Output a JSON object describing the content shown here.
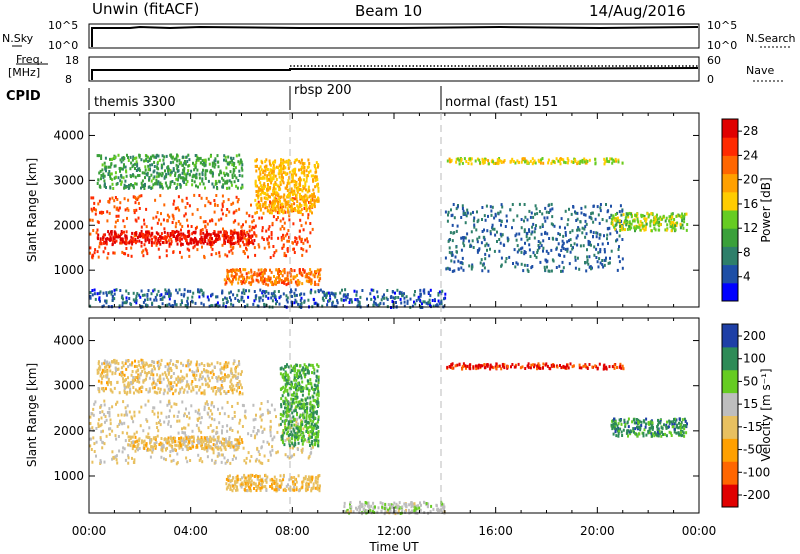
{
  "header": {
    "station": "Unwin (fitACF)",
    "beam": "Beam 10",
    "date": "14/Aug/2016"
  },
  "nsky_strip": {
    "left_label": "N.Sky",
    "right_label": "N.Search",
    "left_ticks": [
      "10^5",
      "10^0"
    ],
    "right_ticks": [
      "10^5",
      "10^0"
    ]
  },
  "freq_strip": {
    "left_label_1": "Freq.",
    "left_label_2": "[MHz]",
    "right_label": "Nave",
    "left_ticks": [
      "18",
      "8"
    ],
    "right_ticks": [
      "60",
      "0"
    ],
    "cpid_label": "CPID"
  },
  "cpid_segments": [
    {
      "label": "themis 3300",
      "start": 0
    },
    {
      "label": "rbsp 200",
      "start": 8
    },
    {
      "label": "normal (fast) 151",
      "start": 14
    }
  ],
  "colors": {
    "frame": "#000000",
    "divider": "#bbbbbb",
    "power": [
      "#0000ff",
      "#1e4fa6",
      "#2e7f6a",
      "#3aa03a",
      "#66cc22",
      "#ffcc00",
      "#ffa000",
      "#ff6600",
      "#ff2a00",
      "#e00000"
    ],
    "velocity": [
      "#e00000",
      "#ff6600",
      "#ffa000",
      "#e8c060",
      "#bebebe",
      "#66cc22",
      "#2e8b57",
      "#1e3fa6"
    ]
  },
  "chart_data": [
    {
      "type": "heatmap",
      "name": "power",
      "ylabel": "Slant Range [km]",
      "xlabel": "Time UT",
      "xlim": [
        0,
        24
      ],
      "ylim": [
        180,
        4500
      ],
      "yticks": [
        "1000",
        "2000",
        "3000",
        "4000"
      ],
      "xticks": [
        "00:00",
        "04:00",
        "08:00",
        "12:00",
        "16:00",
        "20:00",
        "00:00"
      ],
      "colorbar": {
        "label": "Power [dB]",
        "ticks": [
          "4",
          "8",
          "12",
          "16",
          "20",
          "24",
          "28"
        ],
        "range": [
          0,
          30
        ]
      },
      "features": [
        {
          "t": [
            0.0,
            8.8
          ],
          "r": [
            1300,
            2700
          ],
          "v": 24
        },
        {
          "t": [
            0.3,
            6.5
          ],
          "r": [
            1600,
            1900
          ],
          "v": 28
        },
        {
          "t": [
            5.3,
            9.1
          ],
          "r": [
            700,
            1050
          ],
          "v": 22
        },
        {
          "t": [
            0.3,
            6.0
          ],
          "r": [
            2850,
            3600
          ],
          "v": 10
        },
        {
          "t": [
            6.5,
            9.0
          ],
          "r": [
            2300,
            3500
          ],
          "v": 18
        },
        {
          "t": [
            14.0,
            21.0
          ],
          "r": [
            3400,
            3520
          ],
          "v": 16
        },
        {
          "t": [
            14.0,
            21.0
          ],
          "r": [
            1000,
            2500
          ],
          "v": 6
        },
        {
          "t": [
            0.0,
            14.0
          ],
          "r": [
            200,
            600
          ],
          "v": 5
        },
        {
          "t": [
            20.5,
            23.5
          ],
          "r": [
            1900,
            2300
          ],
          "v": 14
        }
      ]
    },
    {
      "type": "heatmap",
      "name": "velocity",
      "ylabel": "Slant Range [km]",
      "xlabel": "Time UT",
      "xlim": [
        0,
        24
      ],
      "ylim": [
        180,
        4500
      ],
      "yticks": [
        "1000",
        "2000",
        "3000",
        "4000"
      ],
      "xticks": [
        "00:00",
        "04:00",
        "08:00",
        "12:00",
        "16:00",
        "20:00",
        "00:00"
      ],
      "colorbar": {
        "label": "Velocity [m s⁻¹]",
        "ticks": [
          "200",
          "100",
          "50",
          "15",
          "-15",
          "-50",
          "-100",
          "-200"
        ],
        "range": [
          -250,
          250
        ]
      },
      "features": [
        {
          "t": [
            0.0,
            8.8
          ],
          "r": [
            1300,
            2700
          ],
          "v": 0
        },
        {
          "t": [
            1.5,
            6.0
          ],
          "r": [
            1600,
            1900
          ],
          "v": -30
        },
        {
          "t": [
            5.3,
            9.1
          ],
          "r": [
            700,
            1050
          ],
          "v": -40
        },
        {
          "t": [
            0.3,
            6.0
          ],
          "r": [
            2850,
            3600
          ],
          "v": -30
        },
        {
          "t": [
            7.5,
            9.0
          ],
          "r": [
            1700,
            3500
          ],
          "v": 120
        },
        {
          "t": [
            14.0,
            21.0
          ],
          "r": [
            3400,
            3520
          ],
          "v": -200
        },
        {
          "t": [
            10.0,
            14.0
          ],
          "r": [
            200,
            450
          ],
          "v": 40
        },
        {
          "t": [
            20.5,
            23.5
          ],
          "r": [
            1900,
            2300
          ],
          "v": 150
        }
      ]
    }
  ]
}
